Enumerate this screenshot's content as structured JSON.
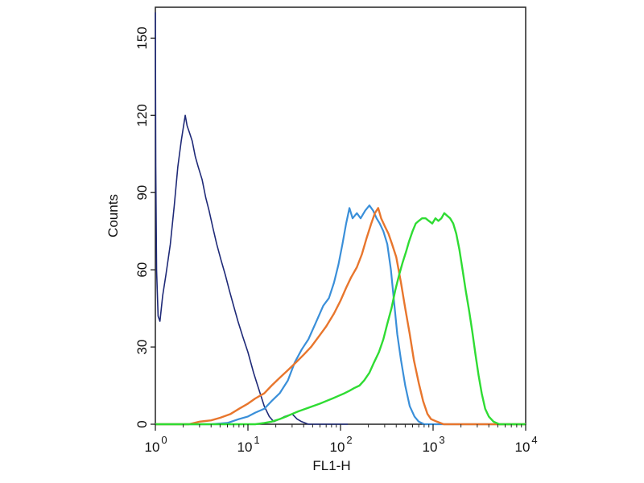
{
  "chart_data": {
    "type": "line",
    "title": "",
    "xlabel": "FL1-H",
    "ylabel": "Counts",
    "x_scale": "log",
    "xlim": [
      1,
      10000
    ],
    "ylim": [
      0,
      162
    ],
    "x_ticks": [
      {
        "value": 1,
        "base": "10",
        "exp": "0"
      },
      {
        "value": 10,
        "base": "10",
        "exp": "1"
      },
      {
        "value": 100,
        "base": "10",
        "exp": "2"
      },
      {
        "value": 1000,
        "base": "10",
        "exp": "3"
      },
      {
        "value": 10000,
        "base": "10",
        "exp": "4"
      }
    ],
    "y_ticks": [
      {
        "value": 0,
        "label": "0"
      },
      {
        "value": 30,
        "label": "30"
      },
      {
        "value": 60,
        "label": "60"
      },
      {
        "value": 90,
        "label": "90"
      },
      {
        "value": 120,
        "label": "120"
      },
      {
        "value": 150,
        "label": "150"
      }
    ],
    "grid": false,
    "legend": "none",
    "series": [
      {
        "color": "#1f2a78",
        "stroke_width": 1.6,
        "points": [
          [
            1.0,
            160
          ],
          [
            1.01,
            100
          ],
          [
            1.03,
            60
          ],
          [
            1.07,
            42
          ],
          [
            1.12,
            40
          ],
          [
            1.2,
            50
          ],
          [
            1.3,
            58
          ],
          [
            1.45,
            70
          ],
          [
            1.6,
            85
          ],
          [
            1.75,
            100
          ],
          [
            1.9,
            110
          ],
          [
            2.0,
            115
          ],
          [
            2.1,
            120
          ],
          [
            2.2,
            116
          ],
          [
            2.35,
            113
          ],
          [
            2.5,
            110
          ],
          [
            2.7,
            104
          ],
          [
            2.9,
            100
          ],
          [
            3.2,
            95
          ],
          [
            3.5,
            88
          ],
          [
            3.8,
            83
          ],
          [
            4.2,
            76
          ],
          [
            4.6,
            70
          ],
          [
            5.1,
            64
          ],
          [
            5.7,
            58
          ],
          [
            6.3,
            52
          ],
          [
            7.0,
            46
          ],
          [
            7.8,
            40
          ],
          [
            8.8,
            34
          ],
          [
            10,
            28
          ],
          [
            11.5,
            20
          ],
          [
            13,
            14
          ],
          [
            15,
            7
          ],
          [
            17,
            3
          ],
          [
            19,
            1
          ],
          [
            22,
            2
          ],
          [
            25,
            3
          ],
          [
            30,
            4
          ],
          [
            34,
            2
          ],
          [
            38,
            1
          ],
          [
            45,
            0
          ],
          [
            60,
            0
          ],
          [
            120,
            0
          ]
        ]
      },
      {
        "color": "#3a8fd9",
        "stroke_width": 2.2,
        "points": [
          [
            1.0,
            0
          ],
          [
            4.0,
            0
          ],
          [
            6.0,
            0.5
          ],
          [
            8.0,
            2
          ],
          [
            10,
            3
          ],
          [
            12,
            4.5
          ],
          [
            15,
            6
          ],
          [
            18,
            9
          ],
          [
            22,
            12
          ],
          [
            27,
            17
          ],
          [
            32,
            24
          ],
          [
            38,
            29
          ],
          [
            45,
            33
          ],
          [
            55,
            40
          ],
          [
            65,
            46
          ],
          [
            75,
            49
          ],
          [
            85,
            55
          ],
          [
            95,
            62
          ],
          [
            105,
            70
          ],
          [
            115,
            78
          ],
          [
            125,
            84
          ],
          [
            135,
            80
          ],
          [
            150,
            82
          ],
          [
            165,
            80
          ],
          [
            185,
            83
          ],
          [
            205,
            85
          ],
          [
            225,
            83
          ],
          [
            245,
            80
          ],
          [
            265,
            78
          ],
          [
            290,
            75
          ],
          [
            320,
            70
          ],
          [
            350,
            60
          ],
          [
            380,
            47
          ],
          [
            410,
            35
          ],
          [
            450,
            25
          ],
          [
            500,
            15
          ],
          [
            560,
            7
          ],
          [
            630,
            3
          ],
          [
            700,
            1
          ],
          [
            800,
            0
          ],
          [
            1000,
            0
          ],
          [
            10000,
            0
          ]
        ]
      },
      {
        "color": "#e8762d",
        "stroke_width": 2.4,
        "points": [
          [
            1.0,
            0
          ],
          [
            2.3,
            0
          ],
          [
            3,
            1
          ],
          [
            4,
            1.5
          ],
          [
            5,
            2.5
          ],
          [
            6.5,
            4
          ],
          [
            8,
            6
          ],
          [
            10,
            8
          ],
          [
            12,
            10
          ],
          [
            15,
            12
          ],
          [
            18,
            15
          ],
          [
            22,
            18
          ],
          [
            27,
            21
          ],
          [
            33,
            24
          ],
          [
            40,
            27
          ],
          [
            48,
            30
          ],
          [
            58,
            34
          ],
          [
            70,
            38
          ],
          [
            85,
            43
          ],
          [
            100,
            48
          ],
          [
            115,
            53
          ],
          [
            130,
            57
          ],
          [
            150,
            61
          ],
          [
            170,
            66
          ],
          [
            190,
            72
          ],
          [
            215,
            78
          ],
          [
            235,
            82
          ],
          [
            255,
            84
          ],
          [
            275,
            80
          ],
          [
            300,
            77
          ],
          [
            330,
            74
          ],
          [
            360,
            70
          ],
          [
            400,
            65
          ],
          [
            450,
            55
          ],
          [
            500,
            45
          ],
          [
            560,
            35
          ],
          [
            620,
            25
          ],
          [
            700,
            16
          ],
          [
            780,
            9
          ],
          [
            870,
            4
          ],
          [
            950,
            2
          ],
          [
            1100,
            1
          ],
          [
            1300,
            0
          ],
          [
            10000,
            0
          ]
        ]
      },
      {
        "color": "#2fdc33",
        "stroke_width": 2.4,
        "points": [
          [
            1.0,
            0
          ],
          [
            12,
            0
          ],
          [
            15,
            0.5
          ],
          [
            18,
            1
          ],
          [
            22,
            2
          ],
          [
            26,
            3
          ],
          [
            30,
            4
          ],
          [
            35,
            5
          ],
          [
            42,
            6
          ],
          [
            50,
            7
          ],
          [
            60,
            8
          ],
          [
            70,
            9
          ],
          [
            82,
            10
          ],
          [
            95,
            11
          ],
          [
            110,
            12
          ],
          [
            125,
            13
          ],
          [
            140,
            14
          ],
          [
            160,
            15
          ],
          [
            180,
            17
          ],
          [
            205,
            20
          ],
          [
            230,
            24
          ],
          [
            260,
            28
          ],
          [
            290,
            33
          ],
          [
            320,
            39
          ],
          [
            355,
            45
          ],
          [
            390,
            52
          ],
          [
            430,
            58
          ],
          [
            470,
            63
          ],
          [
            510,
            67
          ],
          [
            550,
            71
          ],
          [
            600,
            75
          ],
          [
            650,
            78
          ],
          [
            700,
            79
          ],
          [
            760,
            80
          ],
          [
            830,
            80
          ],
          [
            900,
            79
          ],
          [
            980,
            78
          ],
          [
            1060,
            80
          ],
          [
            1140,
            79
          ],
          [
            1230,
            80
          ],
          [
            1320,
            82
          ],
          [
            1420,
            81
          ],
          [
            1530,
            80
          ],
          [
            1650,
            78
          ],
          [
            1780,
            74
          ],
          [
            1920,
            68
          ],
          [
            2080,
            60
          ],
          [
            2250,
            52
          ],
          [
            2450,
            44
          ],
          [
            2650,
            36
          ],
          [
            2870,
            27
          ],
          [
            3100,
            19
          ],
          [
            3350,
            12
          ],
          [
            3650,
            6
          ],
          [
            4000,
            3
          ],
          [
            4500,
            1
          ],
          [
            5200,
            0
          ],
          [
            10000,
            0
          ]
        ]
      }
    ]
  }
}
